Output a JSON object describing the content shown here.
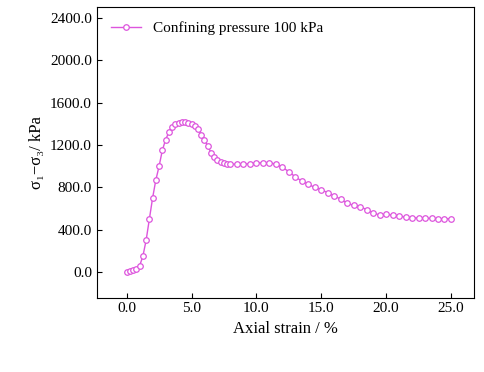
{
  "chart_data": {
    "type": "line",
    "x_label": "Axial strain / %",
    "y_label": "σ₁−σ₃/ kPa",
    "series": [
      {
        "name": "Confining pressure 100 kPa",
        "color": "#dd55dd",
        "marker": "o",
        "line_style": "solid",
        "x": [
          0.0,
          0.25,
          0.5,
          0.75,
          1.0,
          1.25,
          1.5,
          1.75,
          2.0,
          2.25,
          2.5,
          2.75,
          3.0,
          3.25,
          3.5,
          3.75,
          4.0,
          4.25,
          4.5,
          4.75,
          5.0,
          5.25,
          5.5,
          5.75,
          6.0,
          6.25,
          6.5,
          6.75,
          7.0,
          7.25,
          7.5,
          7.75,
          8.0,
          8.5,
          9.0,
          9.5,
          10.0,
          10.5,
          11.0,
          11.5,
          12.0,
          12.5,
          13.0,
          13.5,
          14.0,
          14.5,
          15.0,
          15.5,
          16.0,
          16.5,
          17.0,
          17.5,
          18.0,
          18.5,
          19.0,
          19.5,
          20.0,
          20.5,
          21.0,
          21.5,
          22.0,
          22.5,
          23.0,
          23.5,
          24.0,
          24.5,
          25.0
        ],
        "values": [
          0,
          10,
          20,
          30,
          60,
          150,
          300,
          500,
          700,
          870,
          1000,
          1150,
          1250,
          1320,
          1370,
          1395,
          1410,
          1415,
          1415,
          1410,
          1400,
          1380,
          1350,
          1300,
          1250,
          1190,
          1130,
          1090,
          1060,
          1045,
          1030,
          1025,
          1020,
          1020,
          1020,
          1025,
          1030,
          1035,
          1035,
          1020,
          990,
          950,
          900,
          860,
          830,
          800,
          780,
          750,
          720,
          690,
          650,
          630,
          620,
          590,
          560,
          540,
          545,
          540,
          530,
          520,
          515,
          512,
          510,
          508,
          505,
          505,
          505
        ]
      }
    ],
    "xlim": [
      -2.3,
      26.8
    ],
    "ylim": [
      -240,
      2500
    ],
    "xticks": [
      {
        "value": 0,
        "label": "0.0"
      },
      {
        "value": 5,
        "label": "5.0"
      },
      {
        "value": 10,
        "label": "10.0"
      },
      {
        "value": 15,
        "label": "15.0"
      },
      {
        "value": 20,
        "label": "20.0"
      },
      {
        "value": 25,
        "label": "25.0"
      }
    ],
    "yticks": [
      {
        "value": 0,
        "label": "0.0"
      },
      {
        "value": 400,
        "label": "400.0"
      },
      {
        "value": 800,
        "label": "800.0"
      },
      {
        "value": 1200,
        "label": "1200.0"
      },
      {
        "value": 1600,
        "label": "1600.0"
      },
      {
        "value": 2000,
        "label": "2000.0"
      },
      {
        "value": 2400,
        "label": "2400.0"
      }
    ],
    "legend": "upper left",
    "grid": false
  }
}
